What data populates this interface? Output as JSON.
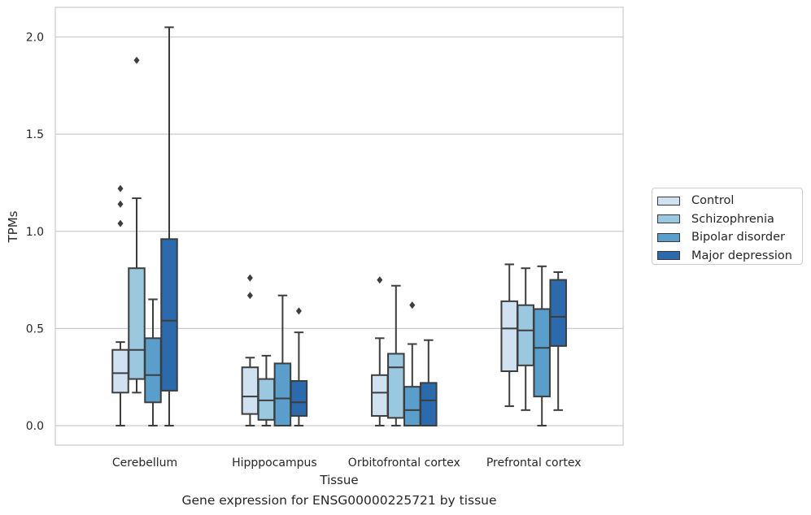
{
  "chart_data": {
    "type": "box",
    "caption": "Gene expression for ENSG00000225721 by tissue",
    "xlabel": "Tissue",
    "ylabel": "TPMs",
    "ylim": [
      -0.1,
      2.15
    ],
    "yticks": [
      "0.0",
      "0.5",
      "1.0",
      "1.5",
      "2.0"
    ],
    "grid": "horizontal",
    "legend_position": "right",
    "categories": [
      "Cerebellum",
      "Hipppocampus",
      "Orbitofrontal cortex",
      "Prefrontal cortex"
    ],
    "series": [
      {
        "name": "Control",
        "color": "#d0e1f2",
        "boxes": [
          {
            "whisker_low": 0.0,
            "q1": 0.17,
            "median": 0.27,
            "q3": 0.39,
            "whisker_high": 0.43,
            "outliers": [
              1.04,
              1.14,
              1.22
            ]
          },
          {
            "whisker_low": 0.0,
            "q1": 0.06,
            "median": 0.15,
            "q3": 0.3,
            "whisker_high": 0.35,
            "outliers": [
              0.67,
              0.76
            ]
          },
          {
            "whisker_low": 0.0,
            "q1": 0.05,
            "median": 0.17,
            "q3": 0.26,
            "whisker_high": 0.45,
            "outliers": [
              0.75
            ]
          },
          {
            "whisker_low": 0.1,
            "q1": 0.28,
            "median": 0.5,
            "q3": 0.64,
            "whisker_high": 0.83,
            "outliers": []
          }
        ]
      },
      {
        "name": "Schizophrenia",
        "color": "#9ac8e0",
        "boxes": [
          {
            "whisker_low": 0.17,
            "q1": 0.24,
            "median": 0.39,
            "q3": 0.81,
            "whisker_high": 1.17,
            "outliers": [
              1.88
            ]
          },
          {
            "whisker_low": 0.0,
            "q1": 0.03,
            "median": 0.13,
            "q3": 0.24,
            "whisker_high": 0.36,
            "outliers": []
          },
          {
            "whisker_low": 0.0,
            "q1": 0.04,
            "median": 0.3,
            "q3": 0.37,
            "whisker_high": 0.72,
            "outliers": []
          },
          {
            "whisker_low": 0.08,
            "q1": 0.31,
            "median": 0.49,
            "q3": 0.62,
            "whisker_high": 0.81,
            "outliers": []
          }
        ]
      },
      {
        "name": "Bipolar disorder",
        "color": "#5a9fcc",
        "boxes": [
          {
            "whisker_low": 0.0,
            "q1": 0.12,
            "median": 0.26,
            "q3": 0.45,
            "whisker_high": 0.65,
            "outliers": []
          },
          {
            "whisker_low": 0.0,
            "q1": 0.0,
            "median": 0.14,
            "q3": 0.32,
            "whisker_high": 0.67,
            "outliers": []
          },
          {
            "whisker_low": 0.0,
            "q1": 0.0,
            "median": 0.08,
            "q3": 0.2,
            "whisker_high": 0.42,
            "outliers": [
              0.62
            ]
          },
          {
            "whisker_low": 0.0,
            "q1": 0.15,
            "median": 0.4,
            "q3": 0.6,
            "whisker_high": 0.82,
            "outliers": []
          }
        ]
      },
      {
        "name": "Major depression",
        "color": "#2a6aad",
        "boxes": [
          {
            "whisker_low": 0.0,
            "q1": 0.18,
            "median": 0.54,
            "q3": 0.96,
            "whisker_high": 2.05,
            "outliers": []
          },
          {
            "whisker_low": 0.0,
            "q1": 0.05,
            "median": 0.12,
            "q3": 0.23,
            "whisker_high": 0.48,
            "outliers": [
              0.59
            ]
          },
          {
            "whisker_low": 0.0,
            "q1": 0.0,
            "median": 0.13,
            "q3": 0.22,
            "whisker_high": 0.44,
            "outliers": []
          },
          {
            "whisker_low": 0.08,
            "q1": 0.41,
            "median": 0.56,
            "q3": 0.75,
            "whisker_high": 0.79,
            "outliers": []
          }
        ]
      }
    ]
  }
}
